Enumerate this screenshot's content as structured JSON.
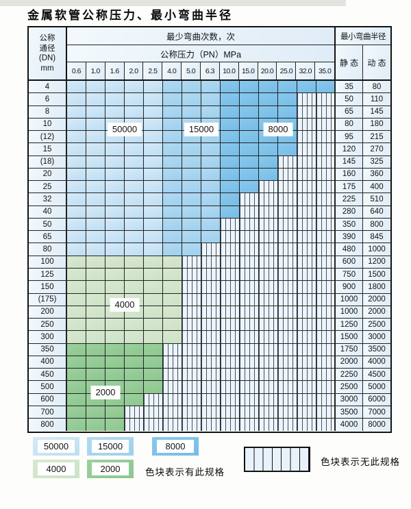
{
  "title": "金属软管公称压力、最小弯曲半径",
  "colors": {
    "c50000": "#c9e3f5",
    "c15000": "#a6d4f0",
    "c8000": "#7ec2ea",
    "c4000": "#d2e5cc",
    "c2000": "#94cb96",
    "striped_bg": "#edf4fb",
    "grid": "#222222"
  },
  "table": {
    "dn_header_lines": [
      "公称",
      "通径",
      "(DN)",
      "mm"
    ],
    "cycles_header": "最少弯曲次数，次",
    "pressure_header": "公称压力（PN）MPa",
    "radius_header": "最小弯曲半径",
    "static_label": "静 态",
    "dynamic_label": "动 态",
    "pressures": [
      "0.6",
      "1.0",
      "1.6",
      "2.0",
      "2.5",
      "4.0",
      "5.0",
      "6.3",
      "10.0",
      "15.0",
      "20.0",
      "25.0",
      "32.0",
      "35.0"
    ],
    "blue_zone_by_pressure": {
      "c50000": [
        "0.6",
        "1.0",
        "1.6",
        "2.0",
        "2.5"
      ],
      "c15000": [
        "4.0",
        "5.0",
        "6.3"
      ],
      "c8000": [
        "10.0",
        "15.0",
        "20.0",
        "25.0",
        "32.0",
        "35.0"
      ]
    },
    "rows": [
      {
        "dn": "4",
        "colored_through": "35.0",
        "palette": "blue",
        "static": "35",
        "dynamic": "80"
      },
      {
        "dn": "6",
        "colored_through": "25.0",
        "palette": "blue",
        "static": "50",
        "dynamic": "110"
      },
      {
        "dn": "8",
        "colored_through": "25.0",
        "palette": "blue",
        "static": "65",
        "dynamic": "145"
      },
      {
        "dn": "10",
        "colored_through": "25.0",
        "palette": "blue",
        "static": "80",
        "dynamic": "180"
      },
      {
        "dn": "(12)",
        "colored_through": "25.0",
        "palette": "blue",
        "static": "95",
        "dynamic": "215"
      },
      {
        "dn": "15",
        "colored_through": "25.0",
        "palette": "blue",
        "static": "120",
        "dynamic": "270"
      },
      {
        "dn": "(18)",
        "colored_through": "20.0",
        "palette": "blue",
        "static": "145",
        "dynamic": "325"
      },
      {
        "dn": "20",
        "colored_through": "20.0",
        "palette": "blue",
        "static": "160",
        "dynamic": "360"
      },
      {
        "dn": "25",
        "colored_through": "15.0",
        "palette": "blue",
        "static": "175",
        "dynamic": "400"
      },
      {
        "dn": "32",
        "colored_through": "10.0",
        "palette": "blue",
        "static": "225",
        "dynamic": "510"
      },
      {
        "dn": "40",
        "colored_through": "10.0",
        "palette": "blue",
        "static": "280",
        "dynamic": "640"
      },
      {
        "dn": "50",
        "colored_through": "6.3",
        "palette": "blue",
        "static": "350",
        "dynamic": "800"
      },
      {
        "dn": "65",
        "colored_through": "6.3",
        "palette": "blue",
        "static": "390",
        "dynamic": "845"
      },
      {
        "dn": "80",
        "colored_through": "5.0",
        "palette": "blue",
        "static": "480",
        "dynamic": "1000"
      },
      {
        "dn": "100",
        "colored_through": "4.0",
        "palette": "c4000",
        "static": "600",
        "dynamic": "1200"
      },
      {
        "dn": "125",
        "colored_through": "4.0",
        "palette": "c4000",
        "static": "750",
        "dynamic": "1500"
      },
      {
        "dn": "150",
        "colored_through": "4.0",
        "palette": "c4000",
        "static": "900",
        "dynamic": "1800"
      },
      {
        "dn": "(175)",
        "colored_through": "4.0",
        "palette": "c4000",
        "static": "1000",
        "dynamic": "2000"
      },
      {
        "dn": "200",
        "colored_through": "4.0",
        "palette": "c4000",
        "static": "1000",
        "dynamic": "2000"
      },
      {
        "dn": "250",
        "colored_through": "4.0",
        "palette": "c4000",
        "static": "1250",
        "dynamic": "2500"
      },
      {
        "dn": "300",
        "colored_through": "4.0",
        "palette": "c4000",
        "static": "1500",
        "dynamic": "3000"
      },
      {
        "dn": "350",
        "colored_through": "2.5",
        "palette": "c2000",
        "static": "1750",
        "dynamic": "3500"
      },
      {
        "dn": "400",
        "colored_through": "2.5",
        "palette": "c2000",
        "static": "2000",
        "dynamic": "4000"
      },
      {
        "dn": "450",
        "colored_through": "2.5",
        "palette": "c2000",
        "static": "2250",
        "dynamic": "4500"
      },
      {
        "dn": "500",
        "colored_through": "2.5",
        "palette": "c2000",
        "static": "2500",
        "dynamic": "5000"
      },
      {
        "dn": "600",
        "colored_through": "2.0",
        "palette": "c2000",
        "static": "3000",
        "dynamic": "6000"
      },
      {
        "dn": "700",
        "colored_through": "1.6",
        "palette": "c2000",
        "static": "3500",
        "dynamic": "7000"
      },
      {
        "dn": "800",
        "colored_through": "1.6",
        "palette": "c2000",
        "static": "4000",
        "dynamic": "8000"
      }
    ]
  },
  "overlays": [
    {
      "text": "50000",
      "below_dn": "(12)",
      "cols": [
        "1.6",
        "2.0"
      ]
    },
    {
      "text": "15000",
      "below_dn": "(12)",
      "cols": [
        "5.0",
        "6.3"
      ]
    },
    {
      "text": "8000",
      "below_dn": "(12)",
      "cols": [
        "20.0",
        "25.0"
      ]
    },
    {
      "text": "4000",
      "below_dn": "200",
      "cols": [
        "1.6",
        "2.0"
      ]
    },
    {
      "text": "2000",
      "below_dn": "600",
      "cols": [
        "1.0",
        "1.6"
      ]
    }
  ],
  "legend": {
    "has_spec_items": [
      {
        "label": "50000",
        "color_key": "c50000"
      },
      {
        "label": "15000",
        "color_key": "c15000"
      },
      {
        "label": "8000",
        "color_key": "c8000"
      },
      {
        "label": "4000",
        "color_key": "c4000"
      },
      {
        "label": "2000",
        "color_key": "c2000"
      }
    ],
    "has_spec_text": "色块表示有此规格",
    "no_spec_text": "色块表示无此规格"
  }
}
